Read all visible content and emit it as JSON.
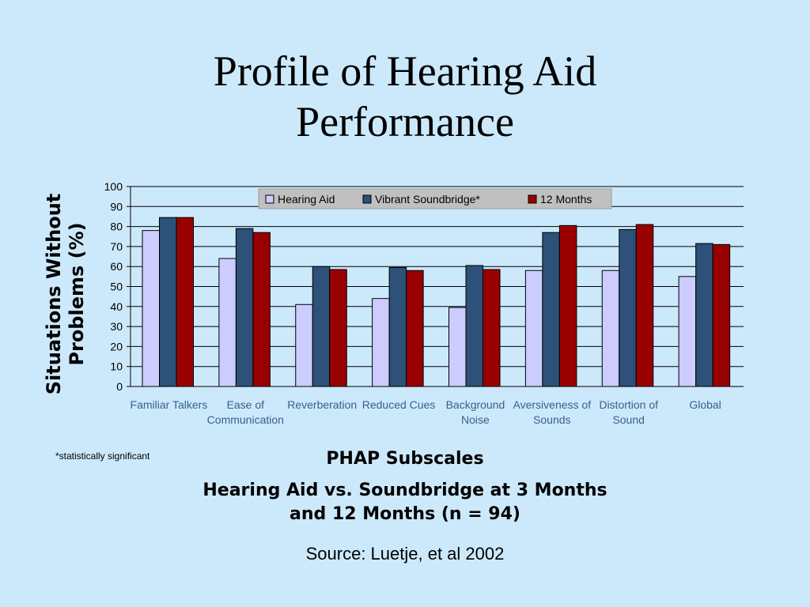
{
  "title_lines": [
    "Profile of Hearing Aid",
    "Performance"
  ],
  "ylabel_lines": [
    "Situations Without",
    "Problems (%)"
  ],
  "footnote": "*statistically significant",
  "caption": {
    "line1": "PHAP Subscales",
    "line2": "Hearing Aid vs. Soundbridge at 3 Months",
    "line3": "and 12 Months (n = 94)",
    "source": "Source:  Luetje, et al 2002"
  },
  "colors": {
    "background": "#cce9fb",
    "legend_background": "#c0c0c0"
  },
  "chart_data": {
    "type": "bar",
    "title": "",
    "xlabel": "",
    "ylabel": "Situations Without Problems (%)",
    "ylim": [
      0,
      100
    ],
    "yticks": [
      0,
      10,
      20,
      30,
      40,
      50,
      60,
      70,
      80,
      90,
      100
    ],
    "grid": true,
    "legend_position": "top",
    "categories": [
      [
        "Familiar Talkers"
      ],
      [
        "Ease of",
        "Communication"
      ],
      [
        "Reverberation"
      ],
      [
        "Reduced Cues"
      ],
      [
        "Background",
        "Noise"
      ],
      [
        "Aversiveness of",
        "Sounds"
      ],
      [
        "Distortion of",
        "Sound"
      ],
      [
        "Global"
      ]
    ],
    "series": [
      {
        "name": "Hearing Aid",
        "color": "#ccccff",
        "values": [
          78,
          64,
          41,
          44,
          39.5,
          58,
          58,
          55
        ]
      },
      {
        "name": "Vibrant Soundbridge*",
        "color": "#2d5178",
        "values": [
          84.5,
          79,
          60,
          59.5,
          60.5,
          77,
          78.5,
          71.5
        ]
      },
      {
        "name": "12 Months",
        "color": "#990000",
        "values": [
          84.5,
          77,
          58.5,
          58,
          58.5,
          80.5,
          81,
          71
        ]
      }
    ]
  }
}
